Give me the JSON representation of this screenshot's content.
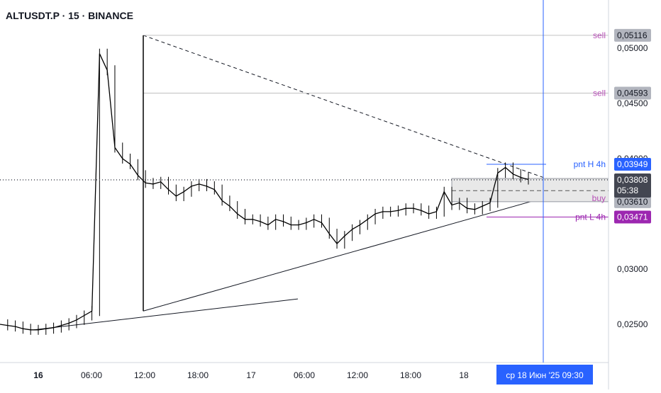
{
  "header": {
    "title": "ALTUSDT.P · 15 · BINANCE"
  },
  "chart_data": {
    "type": "candlestick",
    "symbol": "ALTUSDT.P",
    "interval": "15",
    "exchange": "BINANCE",
    "y_axis": {
      "ticks": [
        {
          "value": 0.05,
          "label": "0,05000"
        },
        {
          "value": 0.045,
          "label": "0,04500"
        },
        {
          "value": 0.04,
          "label": "0,04000"
        },
        {
          "value": 0.03,
          "label": "0,03000"
        },
        {
          "value": 0.025,
          "label": "0,02500"
        }
      ]
    },
    "x_axis": {
      "ticks": [
        {
          "label": "16",
          "bold": true
        },
        {
          "label": "06:00"
        },
        {
          "label": "12:00"
        },
        {
          "label": "18:00"
        },
        {
          "label": "17"
        },
        {
          "label": "06:00"
        },
        {
          "label": "12:00"
        },
        {
          "label": "18:00"
        },
        {
          "label": "18"
        }
      ],
      "crosshair_label": "ср 18 Июн '25   09:30"
    },
    "price_series": [
      0.025,
      0.0249,
      0.0248,
      0.0246,
      0.0245,
      0.0245,
      0.0246,
      0.0247,
      0.0249,
      0.0251,
      0.0254,
      0.0258,
      0.0262,
      0.0495,
      0.048,
      0.041,
      0.04,
      0.0395,
      0.0385,
      0.0378,
      0.0377,
      0.0379,
      0.0372,
      0.0366,
      0.037,
      0.0375,
      0.0377,
      0.0375,
      0.0372,
      0.0362,
      0.0357,
      0.035,
      0.0345,
      0.0345,
      0.0343,
      0.034,
      0.0345,
      0.0343,
      0.034,
      0.034,
      0.0342,
      0.0345,
      0.0342,
      0.0332,
      0.0323,
      0.033,
      0.0336,
      0.034,
      0.0345,
      0.035,
      0.0352,
      0.0352,
      0.0353,
      0.0355,
      0.0355,
      0.0353,
      0.035,
      0.0352,
      0.037,
      0.0358,
      0.036,
      0.0355,
      0.0354,
      0.0357,
      0.036,
      0.0387,
      0.0392,
      0.0386,
      0.0383,
      0.0381
    ],
    "horizontal_lines": [
      {
        "label": "sell",
        "value": 0.05116,
        "price_label": "0,05116",
        "color": "#b64fb6",
        "line_color": "#c0c0c0",
        "box_color": "#b2b5be"
      },
      {
        "label": "sell",
        "value": 0.04593,
        "price_label": "0,04593",
        "color": "#b64fb6",
        "line_color": "#c0c0c0",
        "box_color": "#b2b5be"
      },
      {
        "label": "pnt H 4h",
        "value": 0.03949,
        "price_label": "0,03949",
        "color": "#2962ff",
        "line_color": "#2962ff",
        "box_color": "#2962ff"
      },
      {
        "label": "buy",
        "value": 0.0361,
        "price_label": "0,03610",
        "color": "#b64fb6",
        "line_color": "#131722",
        "box_color": "#b2b5be"
      },
      {
        "label": "pnt L 4h",
        "value": 0.03471,
        "price_label": "0,03471",
        "color": "#9c27b0",
        "line_color": "#9c27b0",
        "box_color": "#9c27b0"
      }
    ],
    "current_price": {
      "value": 0.03808,
      "price_label": "0,03808",
      "countdown": "05:38",
      "box_color": "#434651"
    },
    "colors": {
      "candle": "#000000",
      "crosshair": "#2962ff",
      "trendline": "#131722"
    }
  }
}
